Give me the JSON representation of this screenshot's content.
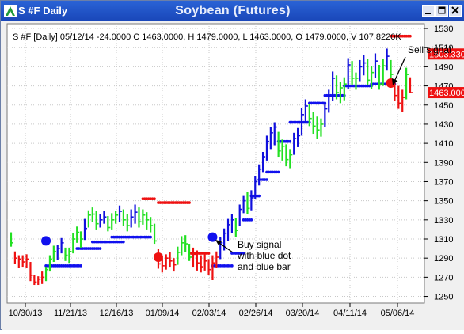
{
  "window": {
    "title": "S #F Daily",
    "chart_title": "Soybean (Futures)",
    "controls": [
      "minimize",
      "maximize",
      "close"
    ]
  },
  "info_line": "S #F [Daily] 05/12/14  -24.0000 C 1463.0000, H 1479.0000, L 1463.0000, O 1479.0000, V 107.8220K",
  "annotations": {
    "buy": [
      "Buy signal",
      "with blue dot",
      "and blue bar"
    ],
    "sell": "Sell signal"
  },
  "price_tags": [
    {
      "label": "1503.3300",
      "value": 1503.33
    },
    {
      "label": "1463.0000",
      "value": 1463.0
    }
  ],
  "chart_data": {
    "type": "ohlc",
    "title": "Soybean (Futures)",
    "y_ticks": [
      1250,
      1270,
      1290,
      1310,
      1330,
      1350,
      1370,
      1390,
      1410,
      1430,
      1450,
      1470,
      1490,
      1510,
      1530
    ],
    "ylim": [
      1243,
      1535
    ],
    "x_ticks": [
      "10/30/13",
      "11/21/13",
      "12/16/13",
      "01/09/14",
      "02/03/14",
      "02/26/14",
      "03/20/14",
      "04/11/14",
      "05/06/14"
    ],
    "grid": true,
    "bars": [
      {
        "h": 1317,
        "l": 1302,
        "c": 1306,
        "col": "green"
      },
      {
        "h": 1297,
        "l": 1284,
        "c": 1290,
        "col": "red"
      },
      {
        "h": 1293,
        "l": 1280,
        "c": 1289,
        "col": "red"
      },
      {
        "h": 1293,
        "l": 1281,
        "c": 1286,
        "col": "red"
      },
      {
        "h": 1294,
        "l": 1280,
        "c": 1289,
        "col": "red"
      },
      {
        "h": 1286,
        "l": 1266,
        "c": 1272,
        "col": "red"
      },
      {
        "h": 1272,
        "l": 1262,
        "c": 1265,
        "col": "red"
      },
      {
        "h": 1271,
        "l": 1262,
        "c": 1268,
        "col": "red"
      },
      {
        "h": 1276,
        "l": 1263,
        "c": 1270,
        "col": "red"
      },
      {
        "h": 1281,
        "l": 1266,
        "c": 1278,
        "col": "green"
      },
      {
        "h": 1293,
        "l": 1276,
        "c": 1289,
        "col": "green"
      },
      {
        "h": 1303,
        "l": 1286,
        "c": 1297,
        "col": "green"
      },
      {
        "h": 1304,
        "l": 1288,
        "c": 1300,
        "col": "blue"
      },
      {
        "h": 1311,
        "l": 1295,
        "c": 1306,
        "col": "blue"
      },
      {
        "h": 1301,
        "l": 1287,
        "c": 1293,
        "col": "green"
      },
      {
        "h": 1301,
        "l": 1285,
        "c": 1297,
        "col": "green"
      },
      {
        "h": 1316,
        "l": 1295,
        "c": 1310,
        "col": "green"
      },
      {
        "h": 1323,
        "l": 1306,
        "c": 1317,
        "col": "green"
      },
      {
        "h": 1318,
        "l": 1301,
        "c": 1310,
        "col": "green"
      },
      {
        "h": 1331,
        "l": 1309,
        "c": 1321,
        "col": "blue"
      },
      {
        "h": 1340,
        "l": 1322,
        "c": 1335,
        "col": "green"
      },
      {
        "h": 1343,
        "l": 1328,
        "c": 1336,
        "col": "green"
      },
      {
        "h": 1339,
        "l": 1320,
        "c": 1326,
        "col": "green"
      },
      {
        "h": 1336,
        "l": 1322,
        "c": 1330,
        "col": "blue"
      },
      {
        "h": 1339,
        "l": 1326,
        "c": 1333,
        "col": "blue"
      },
      {
        "h": 1334,
        "l": 1318,
        "c": 1322,
        "col": "green"
      },
      {
        "h": 1337,
        "l": 1320,
        "c": 1330,
        "col": "green"
      },
      {
        "h": 1339,
        "l": 1326,
        "c": 1335,
        "col": "green"
      },
      {
        "h": 1345,
        "l": 1328,
        "c": 1339,
        "col": "blue"
      },
      {
        "h": 1341,
        "l": 1324,
        "c": 1330,
        "col": "green"
      },
      {
        "h": 1336,
        "l": 1318,
        "c": 1324,
        "col": "green"
      },
      {
        "h": 1341,
        "l": 1322,
        "c": 1333,
        "col": "blue"
      },
      {
        "h": 1346,
        "l": 1326,
        "c": 1338,
        "col": "blue"
      },
      {
        "h": 1343,
        "l": 1322,
        "c": 1328,
        "col": "green"
      },
      {
        "h": 1341,
        "l": 1325,
        "c": 1335,
        "col": "green"
      },
      {
        "h": 1338,
        "l": 1320,
        "c": 1330,
        "col": "green"
      },
      {
        "h": 1333,
        "l": 1317,
        "c": 1324,
        "col": "green"
      },
      {
        "h": 1326,
        "l": 1305,
        "c": 1308,
        "col": "green"
      },
      {
        "h": 1300,
        "l": 1279,
        "c": 1284,
        "col": "red"
      },
      {
        "h": 1290,
        "l": 1275,
        "c": 1282,
        "col": "red"
      },
      {
        "h": 1294,
        "l": 1278,
        "c": 1290,
        "col": "red"
      },
      {
        "h": 1296,
        "l": 1281,
        "c": 1287,
        "col": "red"
      },
      {
        "h": 1290,
        "l": 1276,
        "c": 1283,
        "col": "red"
      },
      {
        "h": 1302,
        "l": 1283,
        "c": 1296,
        "col": "green"
      },
      {
        "h": 1313,
        "l": 1293,
        "c": 1306,
        "col": "green"
      },
      {
        "h": 1314,
        "l": 1296,
        "c": 1305,
        "col": "green"
      },
      {
        "h": 1305,
        "l": 1287,
        "c": 1291,
        "col": "green"
      },
      {
        "h": 1301,
        "l": 1281,
        "c": 1294,
        "col": "red"
      },
      {
        "h": 1298,
        "l": 1277,
        "c": 1285,
        "col": "red"
      },
      {
        "h": 1293,
        "l": 1275,
        "c": 1281,
        "col": "red"
      },
      {
        "h": 1294,
        "l": 1277,
        "c": 1287,
        "col": "red"
      },
      {
        "h": 1289,
        "l": 1272,
        "c": 1278,
        "col": "red"
      },
      {
        "h": 1293,
        "l": 1267,
        "c": 1285,
        "col": "red"
      },
      {
        "h": 1297,
        "l": 1280,
        "c": 1291,
        "col": "red"
      },
      {
        "h": 1312,
        "l": 1289,
        "c": 1306,
        "col": "blue"
      },
      {
        "h": 1321,
        "l": 1298,
        "c": 1316,
        "col": "blue"
      },
      {
        "h": 1331,
        "l": 1308,
        "c": 1325,
        "col": "blue"
      },
      {
        "h": 1336,
        "l": 1316,
        "c": 1330,
        "col": "blue"
      },
      {
        "h": 1332,
        "l": 1312,
        "c": 1319,
        "col": "green"
      },
      {
        "h": 1346,
        "l": 1324,
        "c": 1341,
        "col": "blue"
      },
      {
        "h": 1355,
        "l": 1337,
        "c": 1350,
        "col": "blue"
      },
      {
        "h": 1359,
        "l": 1336,
        "c": 1342,
        "col": "green"
      },
      {
        "h": 1361,
        "l": 1340,
        "c": 1353,
        "col": "blue"
      },
      {
        "h": 1376,
        "l": 1352,
        "c": 1370,
        "col": "blue"
      },
      {
        "h": 1388,
        "l": 1366,
        "c": 1383,
        "col": "blue"
      },
      {
        "h": 1401,
        "l": 1380,
        "c": 1396,
        "col": "blue"
      },
      {
        "h": 1418,
        "l": 1392,
        "c": 1412,
        "col": "blue"
      },
      {
        "h": 1427,
        "l": 1404,
        "c": 1421,
        "col": "blue"
      },
      {
        "h": 1432,
        "l": 1408,
        "c": 1427,
        "col": "blue"
      },
      {
        "h": 1422,
        "l": 1396,
        "c": 1402,
        "col": "green"
      },
      {
        "h": 1414,
        "l": 1392,
        "c": 1407,
        "col": "green"
      },
      {
        "h": 1409,
        "l": 1386,
        "c": 1393,
        "col": "green"
      },
      {
        "h": 1404,
        "l": 1384,
        "c": 1398,
        "col": "green"
      },
      {
        "h": 1421,
        "l": 1398,
        "c": 1415,
        "col": "blue"
      },
      {
        "h": 1426,
        "l": 1406,
        "c": 1418,
        "col": "blue"
      },
      {
        "h": 1447,
        "l": 1418,
        "c": 1440,
        "col": "blue"
      },
      {
        "h": 1456,
        "l": 1432,
        "c": 1449,
        "col": "blue"
      },
      {
        "h": 1451,
        "l": 1428,
        "c": 1436,
        "col": "green"
      },
      {
        "h": 1443,
        "l": 1420,
        "c": 1428,
        "col": "green"
      },
      {
        "h": 1438,
        "l": 1415,
        "c": 1424,
        "col": "green"
      },
      {
        "h": 1436,
        "l": 1417,
        "c": 1430,
        "col": "green"
      },
      {
        "h": 1452,
        "l": 1427,
        "c": 1446,
        "col": "blue"
      },
      {
        "h": 1466,
        "l": 1442,
        "c": 1459,
        "col": "blue"
      },
      {
        "h": 1485,
        "l": 1454,
        "c": 1478,
        "col": "blue"
      },
      {
        "h": 1481,
        "l": 1456,
        "c": 1463,
        "col": "green"
      },
      {
        "h": 1474,
        "l": 1452,
        "c": 1468,
        "col": "green"
      },
      {
        "h": 1479,
        "l": 1455,
        "c": 1472,
        "col": "green"
      },
      {
        "h": 1499,
        "l": 1467,
        "c": 1492,
        "col": "blue"
      },
      {
        "h": 1496,
        "l": 1471,
        "c": 1478,
        "col": "green"
      },
      {
        "h": 1484,
        "l": 1466,
        "c": 1478,
        "col": "green"
      },
      {
        "h": 1497,
        "l": 1475,
        "c": 1490,
        "col": "blue"
      },
      {
        "h": 1502,
        "l": 1481,
        "c": 1494,
        "col": "blue"
      },
      {
        "h": 1498,
        "l": 1471,
        "c": 1476,
        "col": "green"
      },
      {
        "h": 1491,
        "l": 1467,
        "c": 1484,
        "col": "green"
      },
      {
        "h": 1504,
        "l": 1478,
        "c": 1496,
        "col": "blue"
      },
      {
        "h": 1492,
        "l": 1466,
        "c": 1472,
        "col": "green"
      },
      {
        "h": 1498,
        "l": 1470,
        "c": 1491,
        "col": "green"
      },
      {
        "h": 1509,
        "l": 1486,
        "c": 1501,
        "col": "blue"
      },
      {
        "h": 1497,
        "l": 1475,
        "c": 1482,
        "col": "green"
      },
      {
        "h": 1477,
        "l": 1454,
        "c": 1460,
        "col": "red"
      },
      {
        "h": 1470,
        "l": 1446,
        "c": 1452,
        "col": "red"
      },
      {
        "h": 1466,
        "l": 1443,
        "c": 1458,
        "col": "red"
      },
      {
        "h": 1489,
        "l": 1456,
        "c": 1482,
        "col": "green"
      },
      {
        "h": 1479,
        "l": 1463,
        "c": 1463,
        "col": "red"
      }
    ],
    "stops": [
      {
        "from": 9,
        "to": 18,
        "val": 1282,
        "col": "blue"
      },
      {
        "from": 17,
        "to": 23,
        "val": 1300,
        "col": "blue"
      },
      {
        "from": 21,
        "to": 29,
        "val": 1307,
        "col": "blue"
      },
      {
        "from": 26,
        "to": 36,
        "val": 1312,
        "col": "blue"
      },
      {
        "from": 34,
        "to": 37,
        "val": 1352,
        "col": "red"
      },
      {
        "from": 38,
        "to": 46,
        "val": 1348,
        "col": "red"
      },
      {
        "from": 46,
        "to": 51,
        "val": 1295,
        "col": "red"
      },
      {
        "from": 52,
        "to": 57,
        "val": 1282,
        "col": "blue"
      },
      {
        "from": 57,
        "to": 60,
        "val": 1295,
        "col": "blue"
      },
      {
        "from": 60,
        "to": 62,
        "val": 1330,
        "col": "blue"
      },
      {
        "from": 62,
        "to": 64,
        "val": 1355,
        "col": "blue"
      },
      {
        "from": 64,
        "to": 66,
        "val": 1372,
        "col": "blue"
      },
      {
        "from": 66,
        "to": 69,
        "val": 1380,
        "col": "blue"
      },
      {
        "from": 69,
        "to": 72,
        "val": 1412,
        "col": "blue"
      },
      {
        "from": 72,
        "to": 77,
        "val": 1432,
        "col": "blue"
      },
      {
        "from": 77,
        "to": 81,
        "val": 1452,
        "col": "blue"
      },
      {
        "from": 81,
        "to": 86,
        "val": 1460,
        "col": "blue"
      },
      {
        "from": 86,
        "to": 93,
        "val": 1470,
        "col": "blue"
      },
      {
        "from": 93,
        "to": 99,
        "val": 1472,
        "col": "blue"
      },
      {
        "from": 98,
        "to": 103,
        "val": 1522,
        "col": "red"
      }
    ],
    "signals": [
      {
        "type": "buy",
        "bar": 9,
        "price": 1308
      },
      {
        "type": "sell",
        "bar": 38,
        "price": 1291
      },
      {
        "type": "buy",
        "bar": 52,
        "price": 1312
      },
      {
        "type": "sell",
        "bar": 98,
        "price": 1473
      }
    ]
  },
  "colors": {
    "titlebar": "#1f4fc2",
    "background": "#ffffff",
    "grid": "#c8c8c8",
    "blue_bar": "#1010dd",
    "green_bar": "#22e022",
    "red_bar": "#ee1111",
    "buy_dot": "#1111ee",
    "sell_dot": "#ee1111"
  }
}
